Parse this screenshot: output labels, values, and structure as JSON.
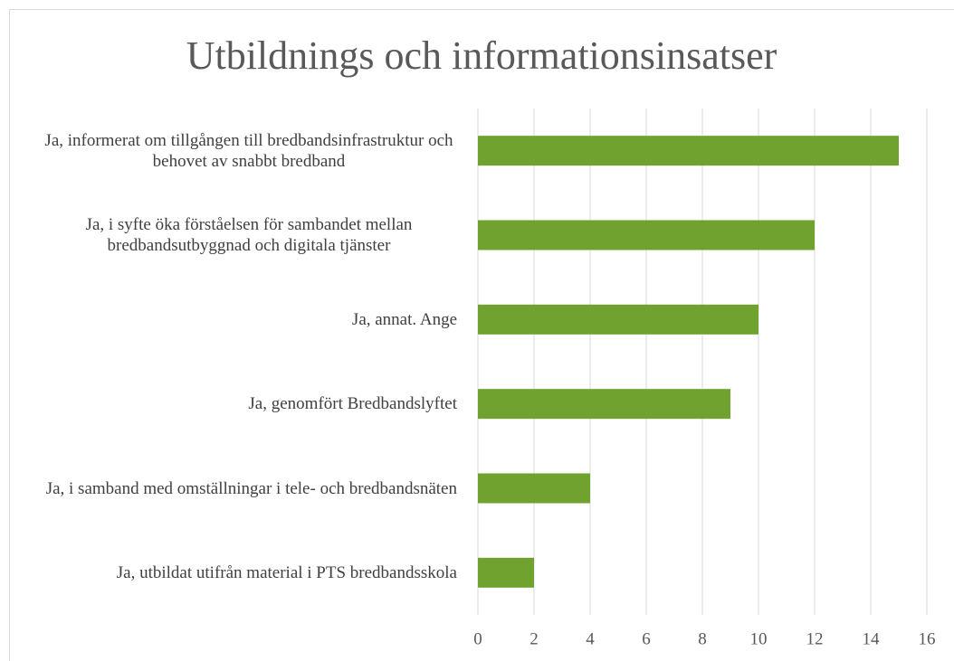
{
  "chart_data": {
    "type": "bar",
    "orientation": "horizontal",
    "title": "Utbildnings och informationsinsatser",
    "categories": [
      "Ja, informerat om tillgången till bredbandsinfrastruktur och behovet av snabbt bredband",
      "Ja, i syfte öka förståelsen för sambandet mellan bredbandsutbyggnad och digitala tjänster",
      "Ja, annat. Ange",
      "Ja, genomfört Bredbandslyftet",
      "Ja, i samband med omställningar i tele- och bredbandsnäten",
      "Ja, utbildat utifrån material i PTS bredbandsskola"
    ],
    "values": [
      15,
      12,
      10,
      9,
      4,
      2
    ],
    "color": "#6fa22e",
    "xlim": [
      0,
      16
    ],
    "xticks": [
      0,
      2,
      4,
      6,
      8,
      10,
      12,
      14,
      16
    ],
    "grid": true
  }
}
